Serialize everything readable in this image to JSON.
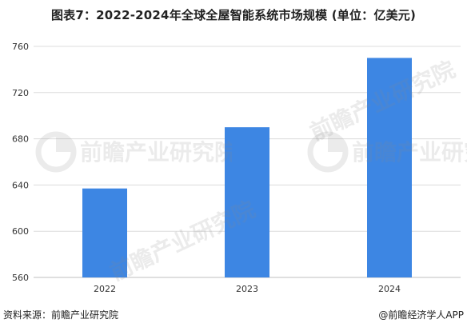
{
  "title": "图表7：2022-2024年全球全屋智能系统市场规模 (单位：亿美元)",
  "source": "资料来源：前瞻产业研究院",
  "brand": "@前瞻经济学人APP",
  "watermark": {
    "text": "前瞻产业研究院"
  },
  "colors": {
    "bar": "#3d86e3",
    "grid": "#dcdcdc",
    "axis": "#bfbfbf",
    "tick_text": "#333333"
  },
  "chart_data": {
    "type": "bar",
    "title": "图表7：2022-2024年全球全屋智能系统市场规模 (单位：亿美元)",
    "categories": [
      "2022",
      "2023",
      "2024"
    ],
    "values": [
      637,
      690,
      750
    ],
    "xlabel": "",
    "ylabel": "",
    "ylim": [
      560,
      760
    ],
    "yticks": [
      560,
      600,
      640,
      680,
      720,
      760
    ],
    "grid": true,
    "legend": false
  }
}
